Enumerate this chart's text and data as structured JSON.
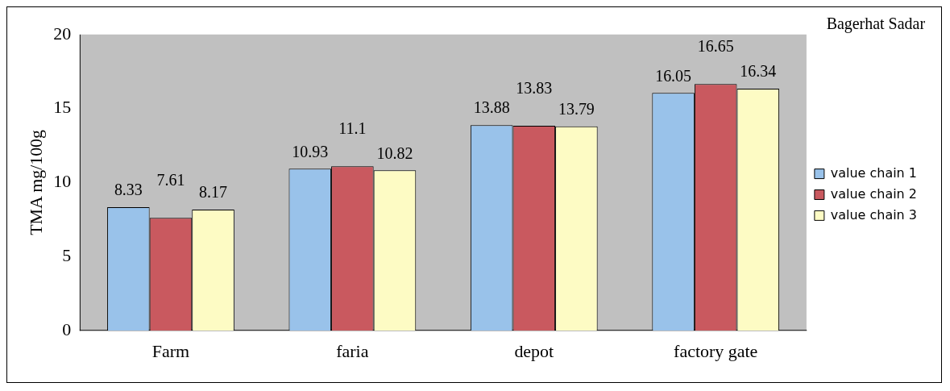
{
  "chart_data": {
    "type": "bar",
    "title": "Bagerhat Sadar",
    "ylabel": "TMA mg/100g",
    "categories": [
      "Farm",
      "faria",
      "depot",
      "factory gate"
    ],
    "series": [
      {
        "name": "value chain 1",
        "color": "#99c2ea",
        "values": [
          8.33,
          10.93,
          13.88,
          16.05
        ]
      },
      {
        "name": "value chain 2",
        "color": "#c9595f",
        "values": [
          7.61,
          11.1,
          13.83,
          16.65
        ]
      },
      {
        "name": "value chain 3",
        "color": "#fdfbc4",
        "values": [
          8.17,
          10.82,
          13.79,
          16.34
        ]
      }
    ],
    "ylim": [
      0,
      20
    ],
    "yticks": [
      0,
      5,
      10,
      15,
      20
    ],
    "grid": false,
    "legend": "right",
    "data_labels": true
  }
}
